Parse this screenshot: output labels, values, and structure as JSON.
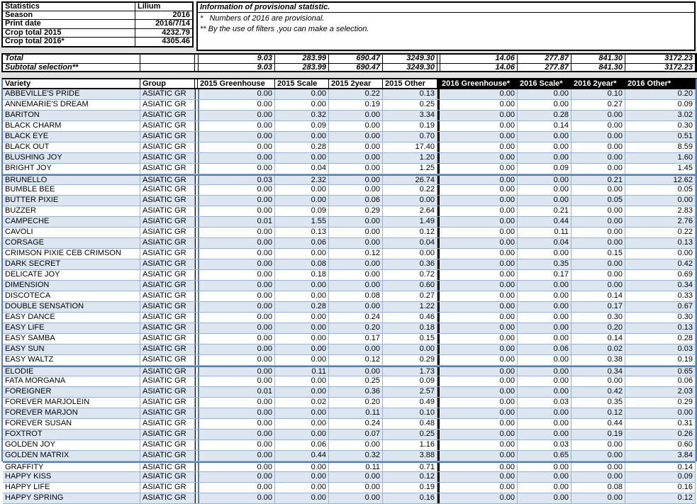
{
  "info_panel": {
    "rows": [
      {
        "label": "Statistics",
        "value": "Lilium"
      },
      {
        "label": "Season",
        "value": "2016"
      },
      {
        "label": "Print date",
        "value": "2016/7/14"
      },
      {
        "label": "Crop total 2015",
        "value": "4232.79"
      },
      {
        "label": "Crop total 2016*",
        "value": "4305.46"
      }
    ]
  },
  "notes": {
    "title": "Information of provisional statistic.",
    "note1": "*   Numbers of 2016 are provisional.",
    "note2": "** By the use of filters ,you can make a selection."
  },
  "totals": {
    "total_label": "Total",
    "subtotal_label": "Subtotal selection**",
    "total_values": [
      "9.03",
      "283.99",
      "690.47",
      "3249.30",
      "14.06",
      "277.87",
      "841.30",
      "3172.23"
    ],
    "subtotal_values": [
      "9.03",
      "283.99",
      "690.47",
      "3249.30",
      "14.06",
      "277.87",
      "841.30",
      "3172.23"
    ]
  },
  "table": {
    "headers": [
      "Variety",
      "Group",
      "2015 Greenhouse",
      "2015 Scale",
      "2015 2year",
      "2015 Other",
      "2016 Greenhouse*",
      "2016 Scale*",
      "2016 2year*",
      "2016 Other*"
    ],
    "page_break_rows": [
      8,
      26,
      35
    ],
    "rows": [
      {
        "variety": "ABBEVILLE'S PRIDE",
        "group": "ASIATIC GR",
        "values": [
          "0.00",
          "0.00",
          "0.22",
          "0.13",
          "0.00",
          "0.00",
          "0.10",
          "0.20"
        ]
      },
      {
        "variety": "ANNEMARIE'S DREAM",
        "group": "ASIATIC GR",
        "values": [
          "0.00",
          "0.00",
          "0.19",
          "0.25",
          "0.00",
          "0.00",
          "0.27",
          "0.09"
        ]
      },
      {
        "variety": "BARITON",
        "group": "ASIATIC GR",
        "values": [
          "0.00",
          "0.32",
          "0.00",
          "3.34",
          "0.00",
          "0.28",
          "0.00",
          "3.02"
        ]
      },
      {
        "variety": "BLACK CHARM",
        "group": "ASIATIC GR",
        "values": [
          "0.00",
          "0.09",
          "0.00",
          "0.19",
          "0.00",
          "0.14",
          "0.00",
          "0.30"
        ]
      },
      {
        "variety": "BLACK EYE",
        "group": "ASIATIC GR",
        "values": [
          "0.00",
          "0.00",
          "0.00",
          "0.70",
          "0.00",
          "0.00",
          "0.00",
          "0.51"
        ]
      },
      {
        "variety": "BLACK OUT",
        "group": "ASIATIC GR",
        "values": [
          "0.00",
          "0.28",
          "0.00",
          "17.40",
          "0.00",
          "0.00",
          "0.00",
          "8.59"
        ]
      },
      {
        "variety": "BLUSHING JOY",
        "group": "ASIATIC GR",
        "values": [
          "0.00",
          "0.00",
          "0.00",
          "1.20",
          "0.00",
          "0.00",
          "0.00",
          "1.60"
        ]
      },
      {
        "variety": "BRIGHT JOY",
        "group": "ASIATIC GR",
        "values": [
          "0.00",
          "0.04",
          "0.00",
          "1.25",
          "0.00",
          "0.09",
          "0.00",
          "1.45"
        ]
      },
      {
        "variety": "BRUNELLO",
        "group": "ASIATIC GR",
        "values": [
          "0.03",
          "2.32",
          "0.00",
          "26.74",
          "0.00",
          "0.00",
          "0.21",
          "12.62"
        ]
      },
      {
        "variety": "BUMBLE BEE",
        "group": "ASIATIC GR",
        "values": [
          "0.00",
          "0.00",
          "0.00",
          "0.22",
          "0.00",
          "0.00",
          "0.00",
          "0.05"
        ]
      },
      {
        "variety": "BUTTER PIXIE",
        "group": "ASIATIC GR",
        "values": [
          "0.00",
          "0.00",
          "0.06",
          "0.00",
          "0.00",
          "0.00",
          "0.05",
          "0.00"
        ]
      },
      {
        "variety": "BUZZER",
        "group": "ASIATIC GR",
        "values": [
          "0.00",
          "0.09",
          "0.29",
          "2.64",
          "0.00",
          "0.21",
          "0.00",
          "2.83"
        ]
      },
      {
        "variety": "CAMPECHE",
        "group": "ASIATIC GR",
        "values": [
          "0.01",
          "1.55",
          "0.00",
          "1.49",
          "0.00",
          "0.44",
          "0.00",
          "2.76"
        ]
      },
      {
        "variety": "CAVOLI",
        "group": "ASIATIC GR",
        "values": [
          "0.00",
          "0.13",
          "0.00",
          "0.12",
          "0.00",
          "0.11",
          "0.00",
          "0.22"
        ]
      },
      {
        "variety": "CORSAGE",
        "group": "ASIATIC GR",
        "values": [
          "0.00",
          "0.06",
          "0.00",
          "0.04",
          "0.00",
          "0.04",
          "0.00",
          "0.13"
        ]
      },
      {
        "variety": "CRIMSON PIXIE CEB CRIMSON",
        "group": "ASIATIC GR",
        "values": [
          "0.00",
          "0.00",
          "0.12",
          "0.00",
          "0.00",
          "0.00",
          "0.15",
          "0.00"
        ]
      },
      {
        "variety": "DARK SECRET",
        "group": "ASIATIC GR",
        "values": [
          "0.00",
          "0.08",
          "0.00",
          "0.36",
          "0.00",
          "0.35",
          "0.00",
          "0.42"
        ]
      },
      {
        "variety": "DELICATE JOY",
        "group": "ASIATIC GR",
        "values": [
          "0.00",
          "0.18",
          "0.00",
          "0.72",
          "0.00",
          "0.17",
          "0.00",
          "0.69"
        ]
      },
      {
        "variety": "DIMENSION",
        "group": "ASIATIC GR",
        "values": [
          "0.00",
          "0.00",
          "0.00",
          "0.60",
          "0.00",
          "0.00",
          "0.00",
          "0.34"
        ]
      },
      {
        "variety": "DISCOTECA",
        "group": "ASIATIC GR",
        "values": [
          "0.00",
          "0.00",
          "0.08",
          "0.27",
          "0.00",
          "0.00",
          "0.14",
          "0.33"
        ]
      },
      {
        "variety": "DOUBLE SENSATION",
        "group": "ASIATIC GR",
        "values": [
          "0.00",
          "0.28",
          "0.00",
          "1.22",
          "0.00",
          "0.00",
          "0.17",
          "0.67"
        ]
      },
      {
        "variety": "EASY DANCE",
        "group": "ASIATIC GR",
        "values": [
          "0.00",
          "0.00",
          "0.24",
          "0.46",
          "0.00",
          "0.00",
          "0.30",
          "0.30"
        ]
      },
      {
        "variety": "EASY LIFE",
        "group": "ASIATIC GR",
        "values": [
          "0.00",
          "0.00",
          "0.20",
          "0.18",
          "0.00",
          "0.00",
          "0.20",
          "0.13"
        ]
      },
      {
        "variety": "EASY SAMBA",
        "group": "ASIATIC GR",
        "values": [
          "0.00",
          "0.00",
          "0.17",
          "0.15",
          "0.00",
          "0.00",
          "0.14",
          "0.28"
        ]
      },
      {
        "variety": "EASY SUN",
        "group": "ASIATIC GR",
        "values": [
          "0.00",
          "0.00",
          "0.00",
          "0.00",
          "0.00",
          "0.06",
          "0.02",
          "0.03"
        ]
      },
      {
        "variety": "EASY WALTZ",
        "group": "ASIATIC GR",
        "values": [
          "0.00",
          "0.00",
          "0.12",
          "0.29",
          "0.00",
          "0.00",
          "0.38",
          "0.19"
        ]
      },
      {
        "variety": "ELODIE",
        "group": "ASIATIC GR",
        "values": [
          "0.00",
          "0.11",
          "0.00",
          "1.73",
          "0.00",
          "0.00",
          "0.34",
          "0.65"
        ]
      },
      {
        "variety": "FATA MORGANA",
        "group": "ASIATIC GR",
        "values": [
          "0.00",
          "0.00",
          "0.25",
          "0.09",
          "0.00",
          "0.00",
          "0.00",
          "0.06"
        ]
      },
      {
        "variety": "FOREIGNER",
        "group": "ASIATIC GR",
        "values": [
          "0.01",
          "0.00",
          "0.36",
          "2.57",
          "0.00",
          "0.00",
          "0.42",
          "2.03"
        ]
      },
      {
        "variety": "FOREVER MARJOLEIN",
        "group": "ASIATIC GR",
        "values": [
          "0.00",
          "0.02",
          "0.20",
          "0.49",
          "0.00",
          "0.03",
          "0.35",
          "0.29"
        ]
      },
      {
        "variety": "FOREVER MARJON",
        "group": "ASIATIC GR",
        "values": [
          "0.00",
          "0.00",
          "0.11",
          "0.10",
          "0.00",
          "0.00",
          "0.12",
          "0.00"
        ]
      },
      {
        "variety": "FOREVER SUSAN",
        "group": "ASIATIC GR",
        "values": [
          "0.00",
          "0.00",
          "0.24",
          "0.48",
          "0.00",
          "0.00",
          "0.44",
          "0.31"
        ]
      },
      {
        "variety": "FOXTROT",
        "group": "ASIATIC GR",
        "values": [
          "0.00",
          "0.00",
          "0.07",
          "0.25",
          "0.00",
          "0.00",
          "0.19",
          "0.26"
        ]
      },
      {
        "variety": "GOLDEN JOY",
        "group": "ASIATIC GR",
        "values": [
          "0.00",
          "0.06",
          "0.00",
          "1.16",
          "0.00",
          "0.03",
          "0.00",
          "0.60"
        ]
      },
      {
        "variety": "GOLDEN MATRIX",
        "group": "ASIATIC GR",
        "values": [
          "0.00",
          "0.44",
          "0.32",
          "3.88",
          "0.00",
          "0.65",
          "0.00",
          "3.84"
        ]
      },
      {
        "variety": "GRAFFITY",
        "group": "ASIATIC GR",
        "values": [
          "0.00",
          "0.00",
          "0.11",
          "0.71",
          "0.00",
          "0.00",
          "0.00",
          "0.14"
        ]
      },
      {
        "variety": "HAPPY KISS",
        "group": "ASIATIC GR",
        "values": [
          "0.00",
          "0.00",
          "0.00",
          "0.12",
          "0.00",
          "0.00",
          "0.00",
          "0.09"
        ]
      },
      {
        "variety": "HAPPY LIFE",
        "group": "ASIATIC GR",
        "values": [
          "0.00",
          "0.00",
          "0.00",
          "0.19",
          "0.00",
          "0.00",
          "0.08",
          "0.16"
        ]
      },
      {
        "variety": "HAPPY SPRING",
        "group": "ASIATIC GR",
        "values": [
          "0.00",
          "0.00",
          "0.00",
          "0.16",
          "0.00",
          "0.00",
          "0.00",
          "0.12"
        ]
      }
    ]
  },
  "colors": {
    "row_alt_fill": "#dce6f1",
    "gridline": "#95b3d7",
    "group_border": "#4f81bd",
    "header_2016_bg": "#000000",
    "header_2016_fg": "#ffffff",
    "separator_band": "#e2e2e2"
  }
}
